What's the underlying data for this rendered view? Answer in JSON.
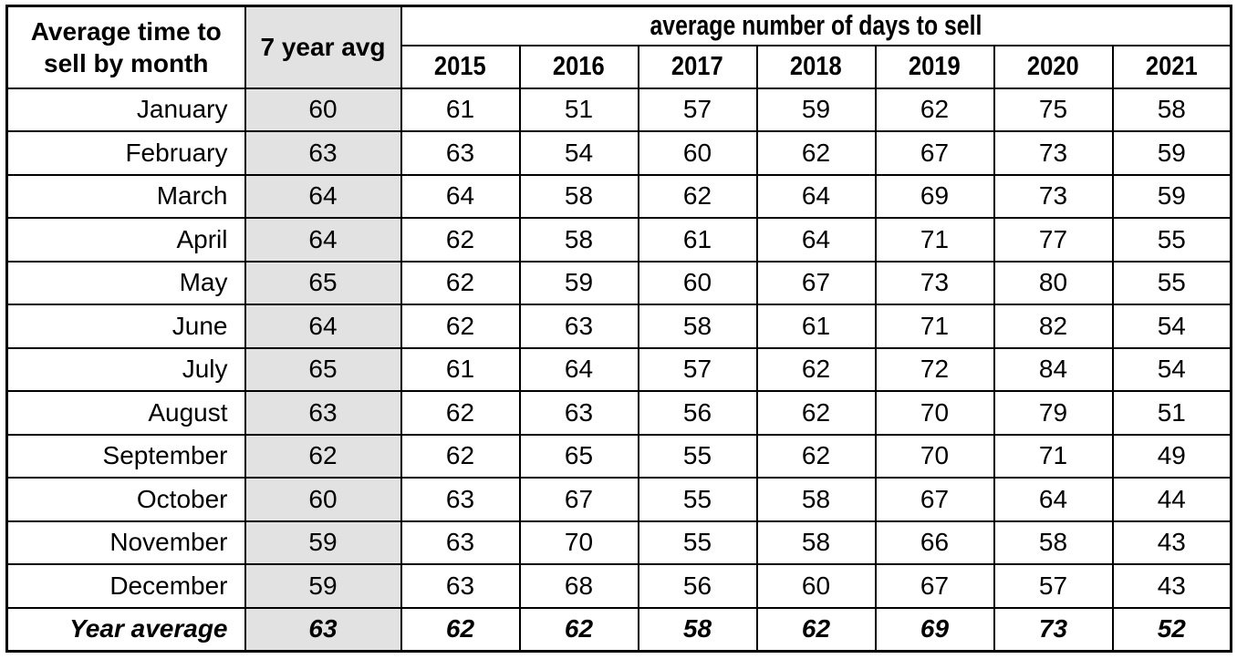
{
  "colors": {
    "shaded_column_bg": "#e2e2e2",
    "border": "#000000",
    "text": "#000000",
    "page_bg": "#ffffff"
  },
  "chart_data": {
    "type": "table",
    "corner_header": "Average time to\nsell by month",
    "avg_column_header": "7 year avg",
    "span_header": "average number of days to sell",
    "years": [
      "2015",
      "2016",
      "2017",
      "2018",
      "2019",
      "2020",
      "2021"
    ],
    "rows": [
      {
        "month": "January",
        "avg7": "60",
        "values": [
          "61",
          "51",
          "57",
          "59",
          "62",
          "75",
          "58"
        ]
      },
      {
        "month": "February",
        "avg7": "63",
        "values": [
          "63",
          "54",
          "60",
          "62",
          "67",
          "73",
          "59"
        ]
      },
      {
        "month": "March",
        "avg7": "64",
        "values": [
          "64",
          "58",
          "62",
          "64",
          "69",
          "73",
          "59"
        ]
      },
      {
        "month": "April",
        "avg7": "64",
        "values": [
          "62",
          "58",
          "61",
          "64",
          "71",
          "77",
          "55"
        ]
      },
      {
        "month": "May",
        "avg7": "65",
        "values": [
          "62",
          "59",
          "60",
          "67",
          "73",
          "80",
          "55"
        ]
      },
      {
        "month": "June",
        "avg7": "64",
        "values": [
          "62",
          "63",
          "58",
          "61",
          "71",
          "82",
          "54"
        ]
      },
      {
        "month": "July",
        "avg7": "65",
        "values": [
          "61",
          "64",
          "57",
          "62",
          "72",
          "84",
          "54"
        ]
      },
      {
        "month": "August",
        "avg7": "63",
        "values": [
          "62",
          "63",
          "56",
          "62",
          "70",
          "79",
          "51"
        ]
      },
      {
        "month": "September",
        "avg7": "62",
        "values": [
          "62",
          "65",
          "55",
          "62",
          "70",
          "71",
          "49"
        ]
      },
      {
        "month": "October",
        "avg7": "60",
        "values": [
          "63",
          "67",
          "55",
          "58",
          "67",
          "64",
          "44"
        ]
      },
      {
        "month": "November",
        "avg7": "59",
        "values": [
          "63",
          "70",
          "55",
          "58",
          "66",
          "58",
          "43"
        ]
      },
      {
        "month": "December",
        "avg7": "59",
        "values": [
          "63",
          "68",
          "56",
          "60",
          "67",
          "57",
          "43"
        ]
      }
    ],
    "footer": {
      "label": "Year average",
      "avg7": "63",
      "values": [
        "62",
        "62",
        "58",
        "62",
        "69",
        "73",
        "52"
      ]
    }
  }
}
